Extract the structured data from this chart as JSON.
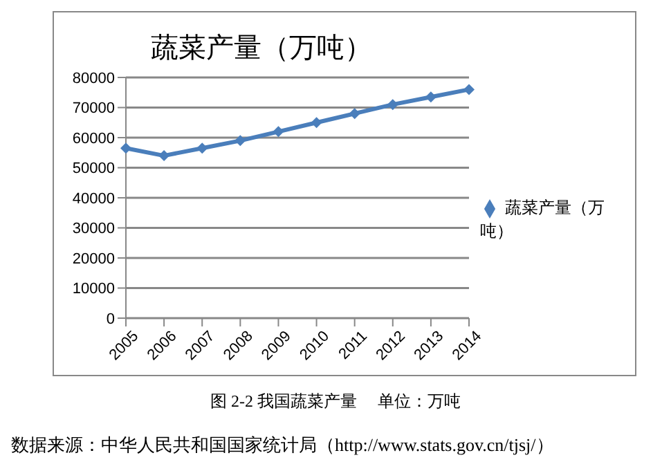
{
  "chart_data": {
    "type": "line",
    "title": "蔬菜产量（万吨）",
    "categories": [
      "2005",
      "2006",
      "2007",
      "2008",
      "2009",
      "2010",
      "2011",
      "2012",
      "2013",
      "2014"
    ],
    "series": [
      {
        "name": "蔬菜产量（万吨）",
        "color": "#4a7ebb",
        "values": [
          56500,
          54000,
          56500,
          59000,
          62000,
          65000,
          68000,
          71000,
          73500,
          76000
        ]
      }
    ],
    "ylim": [
      0,
      80000
    ],
    "yticks": [
      0,
      10000,
      20000,
      30000,
      40000,
      50000,
      60000,
      70000,
      80000
    ],
    "grid": "y",
    "legend": "right",
    "marker": "diamond",
    "line_style": "solid",
    "annotations": [
      "图 2-2 我国蔬菜产量　 单位：万吨",
      "数据来源：中华人民共和国国家统计局（http://www.stats.gov.cn/tjsj/）"
    ]
  }
}
